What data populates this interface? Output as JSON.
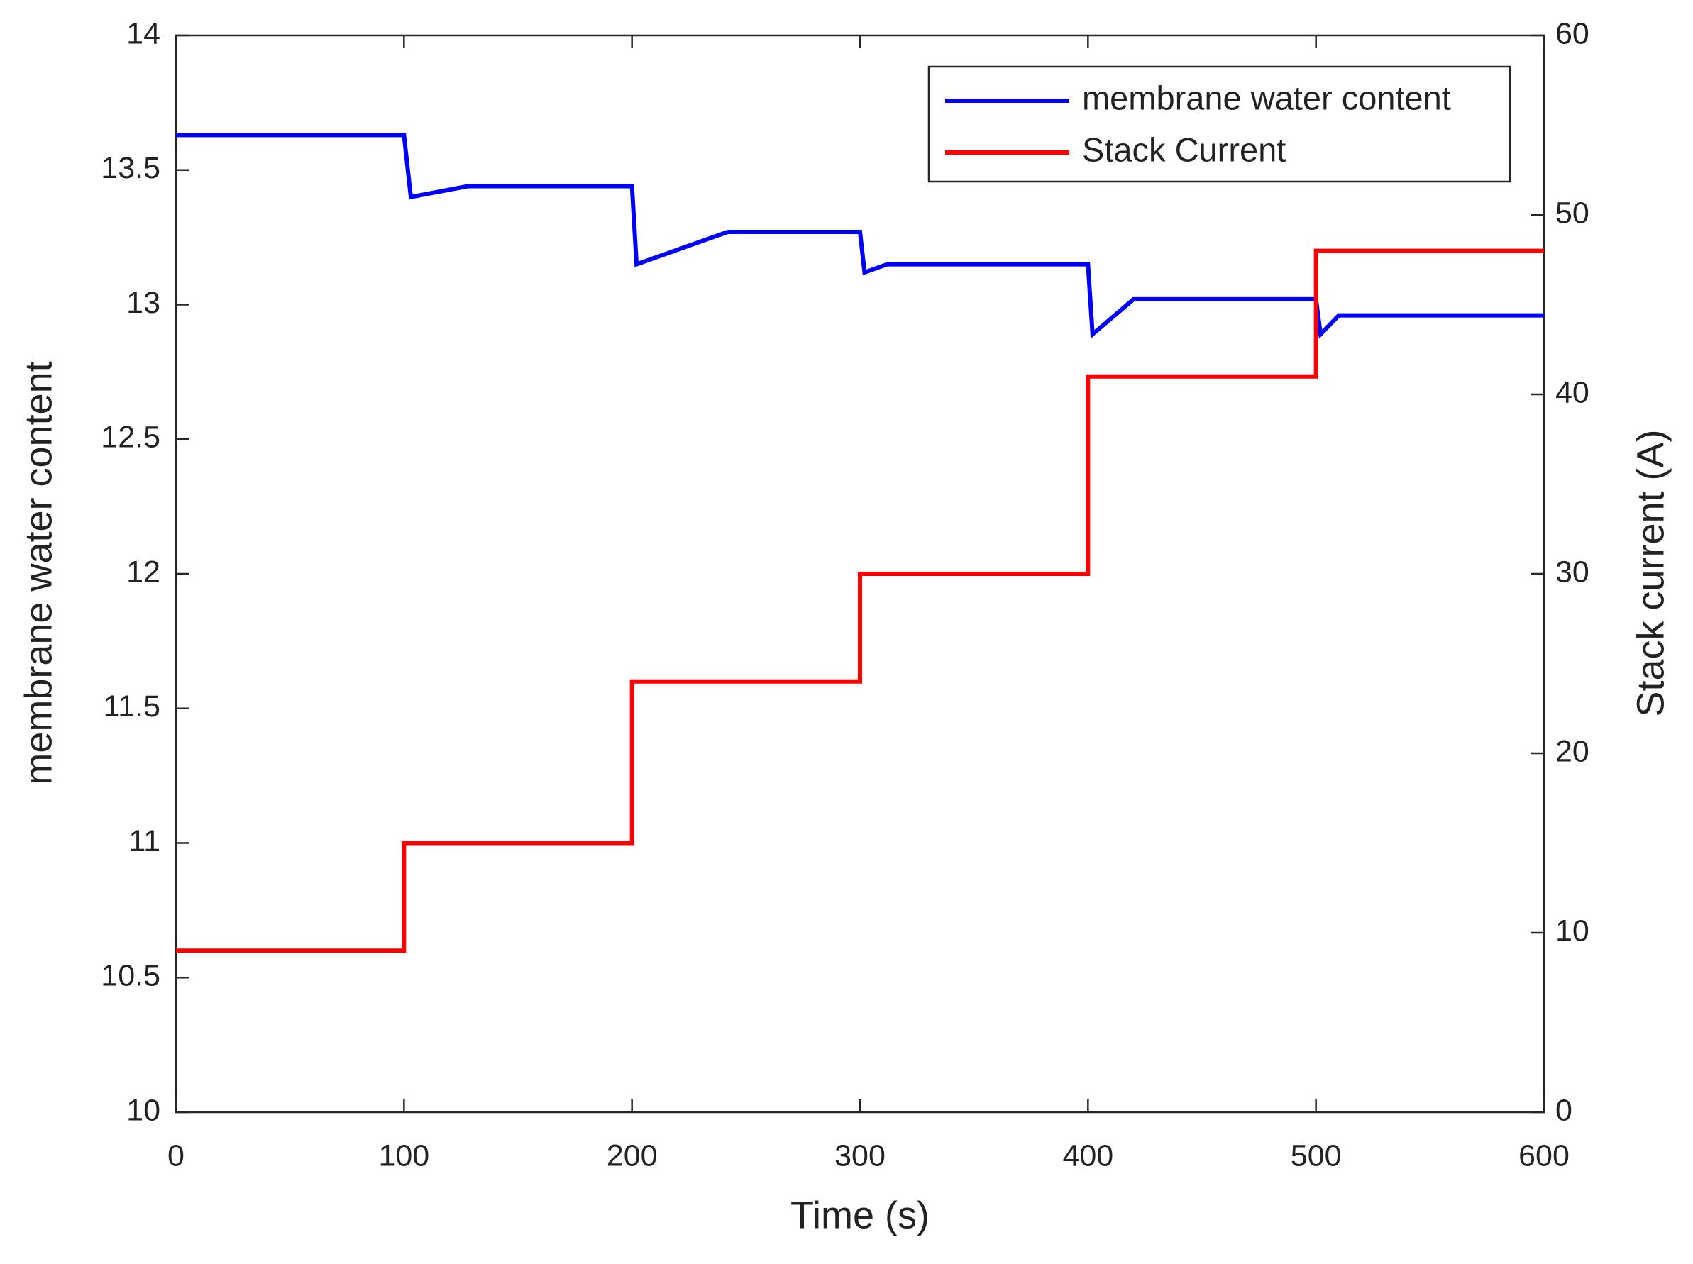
{
  "chart_data": {
    "type": "line",
    "xlabel": "Time (s)",
    "ylabel": "membrane water content",
    "y2label": "Stack current (A)",
    "xlim": [
      0,
      600
    ],
    "xticks": [
      0,
      100,
      200,
      300,
      400,
      500,
      600
    ],
    "ylim": [
      10,
      14
    ],
    "yticks": [
      10,
      10.5,
      11,
      11.5,
      12,
      12.5,
      13,
      13.5,
      14
    ],
    "y2lim": [
      0,
      60
    ],
    "y2ticks": [
      0,
      10,
      20,
      30,
      40,
      50,
      60
    ],
    "grid": false,
    "legend_position": "upper right",
    "series": [
      {
        "name": "membrane water content",
        "color": "#0000ff",
        "x": [
          0,
          100,
          103,
          128,
          200,
          202,
          242,
          300,
          302,
          312,
          400,
          402,
          420,
          500,
          502,
          510,
          600
        ],
        "values": [
          13.63,
          13.63,
          13.4,
          13.44,
          13.44,
          13.15,
          13.27,
          13.27,
          13.12,
          13.15,
          13.15,
          12.89,
          13.02,
          13.02,
          12.89,
          12.96,
          12.96
        ]
      },
      {
        "name": "Stack Current",
        "color": "#ff0000",
        "axis": "y2",
        "x": [
          0,
          100,
          100,
          200,
          200,
          300,
          300,
          400,
          400,
          500,
          500,
          600
        ],
        "values": [
          9,
          9,
          15,
          15,
          24,
          24,
          30,
          30,
          41,
          41,
          48,
          48
        ]
      }
    ]
  }
}
